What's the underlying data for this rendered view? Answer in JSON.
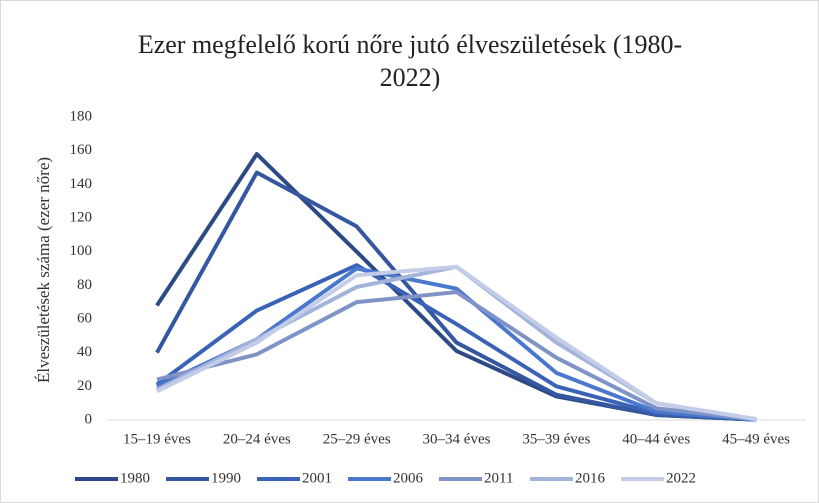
{
  "chart_data": {
    "type": "line",
    "title": "Ezer megfelelő korú nőre jutó élveszületések (1980-2022)",
    "y_label": "Élveszületések száma (ezer nőre)",
    "categories": [
      "15–19 éves",
      "20–24 éves",
      "25–29 éves",
      "30–34 éves",
      "35–39 éves",
      "40–44 éves",
      "45–49 éves"
    ],
    "series": [
      {
        "name": "1980",
        "color": "#2e4a86",
        "values": [
          68,
          158,
          100,
          41,
          14,
          3,
          0.2
        ]
      },
      {
        "name": "1990",
        "color": "#3457a0",
        "values": [
          40,
          147,
          115,
          46,
          15,
          3,
          0.2
        ]
      },
      {
        "name": "2001",
        "color": "#3a63b8",
        "values": [
          21,
          65,
          92,
          57,
          20,
          4,
          0.2
        ]
      },
      {
        "name": "2006",
        "color": "#4a78cc",
        "values": [
          20,
          48,
          90,
          78,
          28,
          5,
          0.3
        ]
      },
      {
        "name": "2011",
        "color": "#7f93c7",
        "values": [
          24,
          39,
          70,
          76,
          37,
          7,
          0.3
        ]
      },
      {
        "name": "2016",
        "color": "#a3b3da",
        "values": [
          18,
          48,
          79,
          91,
          46,
          10,
          0.5
        ]
      },
      {
        "name": "2022",
        "color": "#c3cde8",
        "values": [
          17,
          46,
          86,
          91,
          49,
          10,
          0.5
        ]
      }
    ],
    "ylim": [
      0,
      180
    ],
    "yticks": [
      0,
      20,
      40,
      60,
      80,
      100,
      120,
      140,
      160,
      180
    ],
    "grid": false,
    "legend": "bottom"
  }
}
